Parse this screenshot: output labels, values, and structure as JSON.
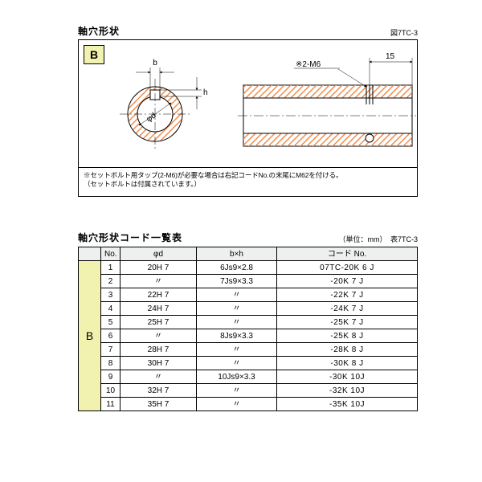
{
  "colors": {
    "b_label_bg": "#f2f2b0",
    "header_row_bg": "#eef0f0",
    "hatch": "#f08b4b",
    "line": "#000000"
  },
  "diagram": {
    "heading": "軸穴形状",
    "figure_label": "図7TC-3",
    "type_label": "B",
    "labels": {
      "b": "b",
      "h": "h",
      "phi_d": "φd",
      "tap": "※2-M6",
      "dim15": "15"
    },
    "note_line1": "※セットボルト用タップ(2-M6)が必要な場合は右記コードNo.の末尾にM62を付ける。",
    "note_line2": "（セットボルトは付属されています。）"
  },
  "table": {
    "heading": "軸穴形状コード一覧表",
    "unit_label": "（単位：mm）　表7TC-3",
    "type_label": "B",
    "columns": {
      "no": "No.",
      "d": "φd",
      "bxh": "b×h",
      "code": "コード No."
    },
    "ditto": "〃",
    "rows": [
      {
        "no": "1",
        "d": "20H 7",
        "bxh": "6Js9×2.8",
        "code": "07TC-20K 6 J"
      },
      {
        "no": "2",
        "d": "〃",
        "bxh": "7Js9×3.3",
        "code": "-20K 7 J"
      },
      {
        "no": "3",
        "d": "22H 7",
        "bxh": "〃",
        "code": "-22K 7 J"
      },
      {
        "no": "4",
        "d": "24H 7",
        "bxh": "〃",
        "code": "-24K 7 J"
      },
      {
        "no": "5",
        "d": "25H 7",
        "bxh": "〃",
        "code": "-25K 7 J"
      },
      {
        "no": "6",
        "d": "〃",
        "bxh": "8Js9×3.3",
        "code": "-25K 8 J"
      },
      {
        "no": "7",
        "d": "28H 7",
        "bxh": "〃",
        "code": "-28K 8 J"
      },
      {
        "no": "8",
        "d": "30H 7",
        "bxh": "〃",
        "code": "-30K 8 J"
      },
      {
        "no": "9",
        "d": "〃",
        "bxh": "10Js9×3.3",
        "code": "-30K 10J"
      },
      {
        "no": "10",
        "d": "32H 7",
        "bxh": "〃",
        "code": "-32K 10J"
      },
      {
        "no": "11",
        "d": "35H 7",
        "bxh": "〃",
        "code": "-35K 10J"
      }
    ]
  }
}
